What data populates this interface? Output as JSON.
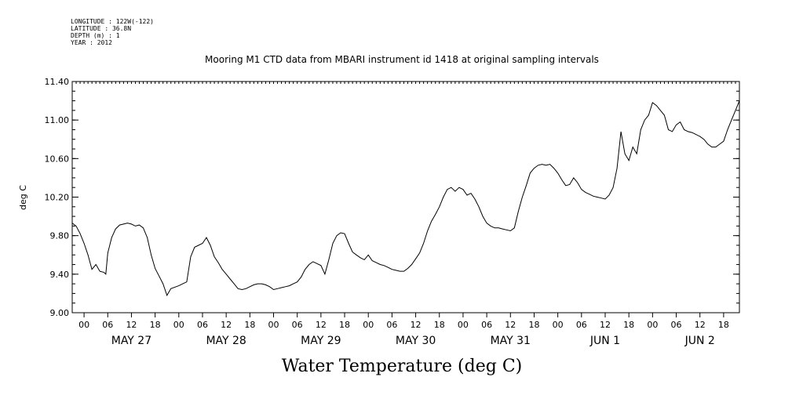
{
  "chart_data": {
    "type": "line",
    "title": "Mooring M1 CTD data from MBARI instrument id 1418 at original sampling intervals",
    "metadata": [
      "LONGITUDE : 122W(-122)",
      "LATITUDE : 36.8N",
      "DEPTH (m) : 1",
      "YEAR : 2012"
    ],
    "xlabel": "Water Temperature (deg C)",
    "ylabel": "deg C",
    "ylim": [
      9.0,
      11.4
    ],
    "yticks": [
      9.0,
      9.4,
      9.8,
      10.2,
      10.6,
      11.0,
      11.4
    ],
    "ytick_labels": [
      "9.00",
      "9.40",
      "9.80",
      "10.20",
      "10.60",
      "11.00",
      "11.40"
    ],
    "xlim": [
      "2012-05-26T21:00",
      "2012-06-02T22:00"
    ],
    "hour_ticks": [
      {
        "t": "2012-05-27T00:00",
        "label": "00"
      },
      {
        "t": "2012-05-27T06:00",
        "label": "06"
      },
      {
        "t": "2012-05-27T12:00",
        "label": "12"
      },
      {
        "t": "2012-05-27T18:00",
        "label": "18"
      },
      {
        "t": "2012-05-28T00:00",
        "label": "00"
      },
      {
        "t": "2012-05-28T06:00",
        "label": "06"
      },
      {
        "t": "2012-05-28T12:00",
        "label": "12"
      },
      {
        "t": "2012-05-28T18:00",
        "label": "18"
      },
      {
        "t": "2012-05-29T00:00",
        "label": "00"
      },
      {
        "t": "2012-05-29T06:00",
        "label": "06"
      },
      {
        "t": "2012-05-29T12:00",
        "label": "12"
      },
      {
        "t": "2012-05-29T18:00",
        "label": "18"
      },
      {
        "t": "2012-05-30T00:00",
        "label": "00"
      },
      {
        "t": "2012-05-30T06:00",
        "label": "06"
      },
      {
        "t": "2012-05-30T12:00",
        "label": "12"
      },
      {
        "t": "2012-05-30T18:00",
        "label": "18"
      },
      {
        "t": "2012-05-31T00:00",
        "label": "00"
      },
      {
        "t": "2012-05-31T06:00",
        "label": "06"
      },
      {
        "t": "2012-05-31T12:00",
        "label": "12"
      },
      {
        "t": "2012-05-31T18:00",
        "label": "18"
      },
      {
        "t": "2012-06-01T00:00",
        "label": "00"
      },
      {
        "t": "2012-06-01T06:00",
        "label": "06"
      },
      {
        "t": "2012-06-01T12:00",
        "label": "12"
      },
      {
        "t": "2012-06-01T18:00",
        "label": "18"
      },
      {
        "t": "2012-06-02T00:00",
        "label": "00"
      },
      {
        "t": "2012-06-02T06:00",
        "label": "06"
      },
      {
        "t": "2012-06-02T12:00",
        "label": "12"
      },
      {
        "t": "2012-06-02T18:00",
        "label": "18"
      }
    ],
    "day_labels": [
      {
        "t": "2012-05-27T12:00",
        "label": "MAY 27"
      },
      {
        "t": "2012-05-28T12:00",
        "label": "MAY 28"
      },
      {
        "t": "2012-05-29T12:00",
        "label": "MAY 29"
      },
      {
        "t": "2012-05-30T12:00",
        "label": "MAY 30"
      },
      {
        "t": "2012-05-31T12:00",
        "label": "MAY 31"
      },
      {
        "t": "2012-06-01T12:00",
        "label": "JUN  1"
      },
      {
        "t": "2012-06-02T12:00",
        "label": "JUN  2"
      }
    ],
    "series": [
      {
        "color": "#000000",
        "points": [
          [
            "2012-05-26T21:00",
            9.93
          ],
          [
            "2012-05-26T22:00",
            9.9
          ],
          [
            "2012-05-26T23:00",
            9.82
          ],
          [
            "2012-05-27T00:00",
            9.72
          ],
          [
            "2012-05-27T01:00",
            9.6
          ],
          [
            "2012-05-27T02:00",
            9.45
          ],
          [
            "2012-05-27T03:00",
            9.5
          ],
          [
            "2012-05-27T04:00",
            9.43
          ],
          [
            "2012-05-27T05:00",
            9.42
          ],
          [
            "2012-05-27T05:30",
            9.4
          ],
          [
            "2012-05-27T06:00",
            9.62
          ],
          [
            "2012-05-27T07:00",
            9.78
          ],
          [
            "2012-05-27T08:00",
            9.87
          ],
          [
            "2012-05-27T09:00",
            9.91
          ],
          [
            "2012-05-27T10:00",
            9.92
          ],
          [
            "2012-05-27T11:00",
            9.93
          ],
          [
            "2012-05-27T12:00",
            9.92
          ],
          [
            "2012-05-27T13:00",
            9.9
          ],
          [
            "2012-05-27T14:00",
            9.91
          ],
          [
            "2012-05-27T15:00",
            9.88
          ],
          [
            "2012-05-27T16:00",
            9.78
          ],
          [
            "2012-05-27T17:00",
            9.6
          ],
          [
            "2012-05-27T18:00",
            9.46
          ],
          [
            "2012-05-27T19:00",
            9.38
          ],
          [
            "2012-05-27T20:00",
            9.3
          ],
          [
            "2012-05-27T21:00",
            9.18
          ],
          [
            "2012-05-27T22:00",
            9.25
          ],
          [
            "2012-05-28T00:00",
            9.28
          ],
          [
            "2012-05-28T01:00",
            9.3
          ],
          [
            "2012-05-28T02:00",
            9.32
          ],
          [
            "2012-05-28T03:00",
            9.58
          ],
          [
            "2012-05-28T04:00",
            9.68
          ],
          [
            "2012-05-28T05:00",
            9.7
          ],
          [
            "2012-05-28T06:00",
            9.72
          ],
          [
            "2012-05-28T07:00",
            9.78
          ],
          [
            "2012-05-28T08:00",
            9.7
          ],
          [
            "2012-05-28T09:00",
            9.58
          ],
          [
            "2012-05-28T10:00",
            9.52
          ],
          [
            "2012-05-28T11:00",
            9.45
          ],
          [
            "2012-05-28T12:00",
            9.4
          ],
          [
            "2012-05-28T13:00",
            9.35
          ],
          [
            "2012-05-28T14:00",
            9.3
          ],
          [
            "2012-05-28T15:00",
            9.25
          ],
          [
            "2012-05-28T16:00",
            9.24
          ],
          [
            "2012-05-28T17:00",
            9.25
          ],
          [
            "2012-05-28T18:00",
            9.27
          ],
          [
            "2012-05-28T19:00",
            9.29
          ],
          [
            "2012-05-28T20:00",
            9.3
          ],
          [
            "2012-05-28T21:00",
            9.3
          ],
          [
            "2012-05-28T22:00",
            9.29
          ],
          [
            "2012-05-28T23:00",
            9.27
          ],
          [
            "2012-05-29T00:00",
            9.24
          ],
          [
            "2012-05-29T01:00",
            9.25
          ],
          [
            "2012-05-29T02:00",
            9.26
          ],
          [
            "2012-05-29T03:00",
            9.27
          ],
          [
            "2012-05-29T04:00",
            9.28
          ],
          [
            "2012-05-29T05:00",
            9.3
          ],
          [
            "2012-05-29T06:00",
            9.32
          ],
          [
            "2012-05-29T07:00",
            9.37
          ],
          [
            "2012-05-29T08:00",
            9.45
          ],
          [
            "2012-05-29T09:00",
            9.5
          ],
          [
            "2012-05-29T10:00",
            9.53
          ],
          [
            "2012-05-29T11:00",
            9.51
          ],
          [
            "2012-05-29T12:00",
            9.49
          ],
          [
            "2012-05-29T13:00",
            9.4
          ],
          [
            "2012-05-29T14:00",
            9.55
          ],
          [
            "2012-05-29T15:00",
            9.72
          ],
          [
            "2012-05-29T16:00",
            9.8
          ],
          [
            "2012-05-29T17:00",
            9.83
          ],
          [
            "2012-05-29T18:00",
            9.82
          ],
          [
            "2012-05-29T19:00",
            9.72
          ],
          [
            "2012-05-29T20:00",
            9.63
          ],
          [
            "2012-05-29T21:00",
            9.6
          ],
          [
            "2012-05-29T22:00",
            9.57
          ],
          [
            "2012-05-29T23:00",
            9.55
          ],
          [
            "2012-05-30T00:00",
            9.6
          ],
          [
            "2012-05-30T01:00",
            9.54
          ],
          [
            "2012-05-30T02:00",
            9.52
          ],
          [
            "2012-05-30T03:00",
            9.5
          ],
          [
            "2012-05-30T04:00",
            9.49
          ],
          [
            "2012-05-30T05:00",
            9.47
          ],
          [
            "2012-05-30T06:00",
            9.45
          ],
          [
            "2012-05-30T07:00",
            9.44
          ],
          [
            "2012-05-30T08:00",
            9.43
          ],
          [
            "2012-05-30T09:00",
            9.43
          ],
          [
            "2012-05-30T10:00",
            9.46
          ],
          [
            "2012-05-30T11:00",
            9.5
          ],
          [
            "2012-05-30T12:00",
            9.56
          ],
          [
            "2012-05-30T13:00",
            9.62
          ],
          [
            "2012-05-30T14:00",
            9.72
          ],
          [
            "2012-05-30T15:00",
            9.85
          ],
          [
            "2012-05-30T16:00",
            9.95
          ],
          [
            "2012-05-30T17:00",
            10.02
          ],
          [
            "2012-05-30T18:00",
            10.1
          ],
          [
            "2012-05-30T19:00",
            10.2
          ],
          [
            "2012-05-30T20:00",
            10.28
          ],
          [
            "2012-05-30T21:00",
            10.3
          ],
          [
            "2012-05-30T22:00",
            10.26
          ],
          [
            "2012-05-30T23:00",
            10.3
          ],
          [
            "2012-05-31T00:00",
            10.28
          ],
          [
            "2012-05-31T01:00",
            10.22
          ],
          [
            "2012-05-31T02:00",
            10.24
          ],
          [
            "2012-05-31T03:00",
            10.18
          ],
          [
            "2012-05-31T04:00",
            10.1
          ],
          [
            "2012-05-31T05:00",
            10.0
          ],
          [
            "2012-05-31T06:00",
            9.93
          ],
          [
            "2012-05-31T07:00",
            9.9
          ],
          [
            "2012-05-31T08:00",
            9.88
          ],
          [
            "2012-05-31T09:00",
            9.88
          ],
          [
            "2012-05-31T10:00",
            9.87
          ],
          [
            "2012-05-31T11:00",
            9.86
          ],
          [
            "2012-05-31T12:00",
            9.85
          ],
          [
            "2012-05-31T13:00",
            9.88
          ],
          [
            "2012-05-31T14:00",
            10.05
          ],
          [
            "2012-05-31T15:00",
            10.2
          ],
          [
            "2012-05-31T16:00",
            10.32
          ],
          [
            "2012-05-31T17:00",
            10.45
          ],
          [
            "2012-05-31T18:00",
            10.5
          ],
          [
            "2012-05-31T19:00",
            10.53
          ],
          [
            "2012-05-31T20:00",
            10.54
          ],
          [
            "2012-05-31T21:00",
            10.53
          ],
          [
            "2012-05-31T22:00",
            10.54
          ],
          [
            "2012-05-31T23:00",
            10.5
          ],
          [
            "2012-06-01T00:00",
            10.45
          ],
          [
            "2012-06-01T01:00",
            10.38
          ],
          [
            "2012-06-01T02:00",
            10.32
          ],
          [
            "2012-06-01T03:00",
            10.33
          ],
          [
            "2012-06-01T04:00",
            10.4
          ],
          [
            "2012-06-01T05:00",
            10.35
          ],
          [
            "2012-06-01T06:00",
            10.28
          ],
          [
            "2012-06-01T07:00",
            10.25
          ],
          [
            "2012-06-01T08:00",
            10.23
          ],
          [
            "2012-06-01T09:00",
            10.21
          ],
          [
            "2012-06-01T10:00",
            10.2
          ],
          [
            "2012-06-01T11:00",
            10.19
          ],
          [
            "2012-06-01T12:00",
            10.18
          ],
          [
            "2012-06-01T13:00",
            10.22
          ],
          [
            "2012-06-01T14:00",
            10.3
          ],
          [
            "2012-06-01T15:00",
            10.5
          ],
          [
            "2012-06-01T16:00",
            10.88
          ],
          [
            "2012-06-01T17:00",
            10.65
          ],
          [
            "2012-06-01T18:00",
            10.58
          ],
          [
            "2012-06-01T19:00",
            10.72
          ],
          [
            "2012-06-01T20:00",
            10.65
          ],
          [
            "2012-06-01T21:00",
            10.9
          ],
          [
            "2012-06-01T22:00",
            11.0
          ],
          [
            "2012-06-01T23:00",
            11.05
          ],
          [
            "2012-06-02T00:00",
            11.18
          ],
          [
            "2012-06-02T01:00",
            11.15
          ],
          [
            "2012-06-02T02:00",
            11.1
          ],
          [
            "2012-06-02T03:00",
            11.05
          ],
          [
            "2012-06-02T04:00",
            10.9
          ],
          [
            "2012-06-02T05:00",
            10.88
          ],
          [
            "2012-06-02T06:00",
            10.95
          ],
          [
            "2012-06-02T07:00",
            10.98
          ],
          [
            "2012-06-02T08:00",
            10.9
          ],
          [
            "2012-06-02T09:00",
            10.88
          ],
          [
            "2012-06-02T10:00",
            10.87
          ],
          [
            "2012-06-02T11:00",
            10.85
          ],
          [
            "2012-06-02T12:00",
            10.83
          ],
          [
            "2012-06-02T13:00",
            10.8
          ],
          [
            "2012-06-02T14:00",
            10.75
          ],
          [
            "2012-06-02T15:00",
            10.72
          ],
          [
            "2012-06-02T16:00",
            10.72
          ],
          [
            "2012-06-02T17:00",
            10.75
          ],
          [
            "2012-06-02T18:00",
            10.78
          ],
          [
            "2012-06-02T19:00",
            10.9
          ],
          [
            "2012-06-02T20:00",
            11.0
          ],
          [
            "2012-06-02T21:00",
            11.1
          ],
          [
            "2012-06-02T22:00",
            11.2
          ]
        ]
      }
    ]
  }
}
